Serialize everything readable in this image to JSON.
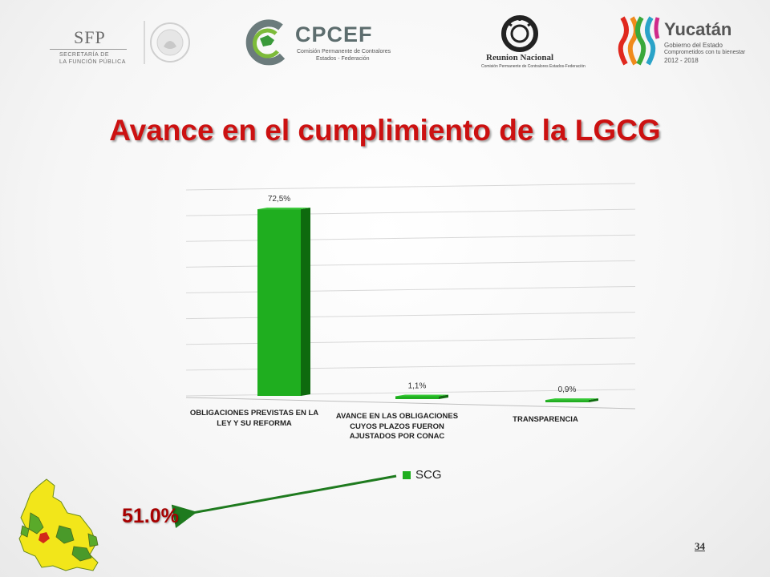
{
  "logos": {
    "sfp": {
      "name": "SFP",
      "line1": "SECRETARÍA DE",
      "line2": "LA FUNCIÓN PÚBLICA"
    },
    "cpcef": {
      "name": "CPCEF",
      "line1": "Comisión Permanente de Contralores",
      "line2": "Estados - Federación"
    },
    "reunion": {
      "name": "Reunion Nacional",
      "line1": "Comisión Permanente de Contralores Estados-Federación"
    },
    "yucatan": {
      "name": "Yucatán",
      "line1": "Gobierno del Estado",
      "line2": "Comprometidos con tu bienestar",
      "line3": "2012 - 2018"
    }
  },
  "title": "Avance en el cumplimiento de la LGCG",
  "chart_data": {
    "type": "bar",
    "categories": [
      "OBLIGACIONES PREVISTAS EN LA LEY Y SU REFORMA",
      "AVANCE EN LAS OBLIGACIONES CUYOS PLAZOS FUERON AJUSTADOS POR CONAC",
      "TRANSPARENCIA"
    ],
    "series": [
      {
        "name": "SCG",
        "values": [
          72.5,
          1.1,
          0.9
        ],
        "labels": [
          "72,5%",
          "1,1%",
          "0,9%"
        ],
        "color": "#1fae1f"
      }
    ],
    "ylim": [
      0,
      80
    ],
    "grid": true,
    "legend": "bottom-center"
  },
  "summary": {
    "value": "51.0%",
    "color": "#a80000"
  },
  "page_number": "34"
}
